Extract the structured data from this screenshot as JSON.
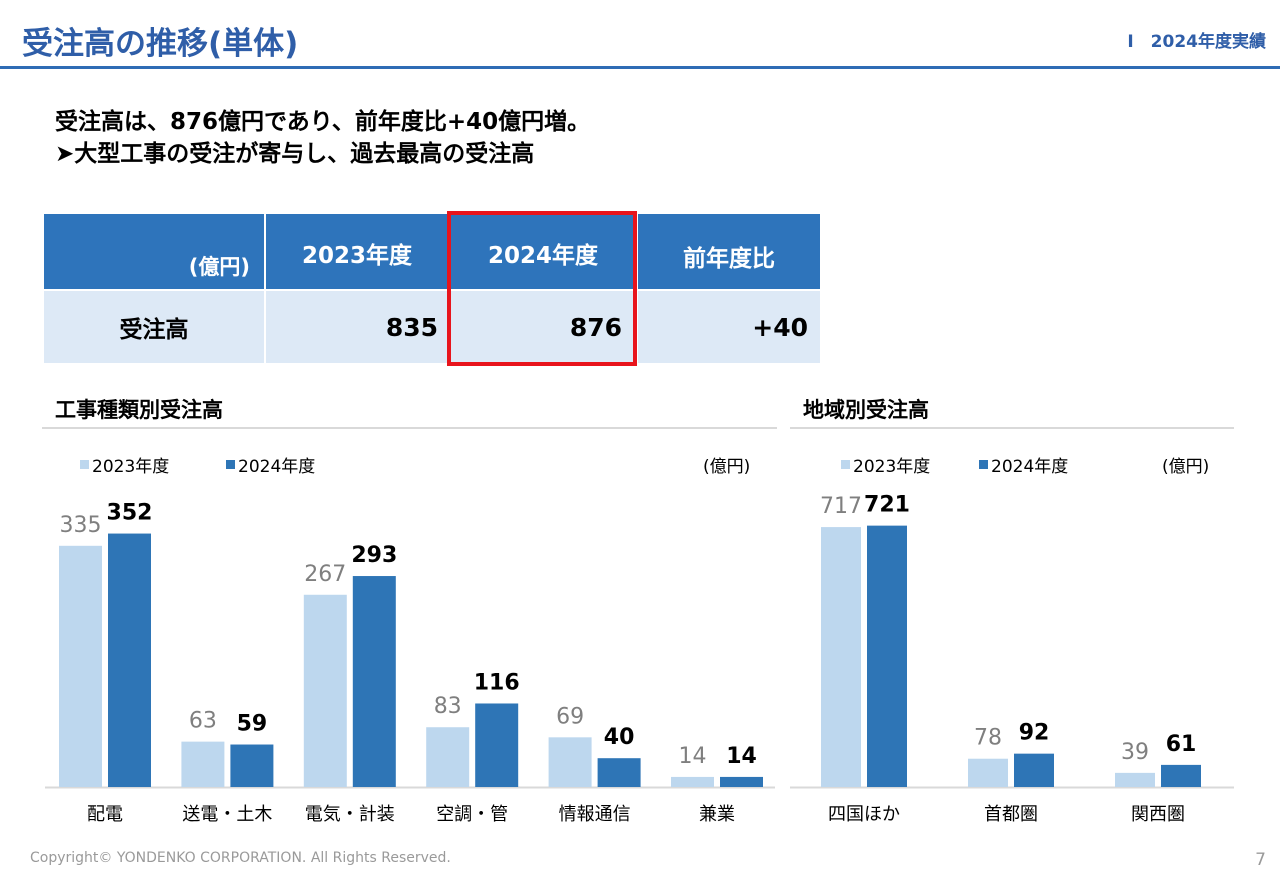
{
  "header": {
    "title": "受注高の推移(単体)",
    "section": "Ⅰ　2024年度実績"
  },
  "summary": {
    "line1": "受注高は、876億円であり、前年度比+40億円増。",
    "line2": "➤大型工事の受注が寄与し、過去最高の受注高"
  },
  "table": {
    "unit": "(億円)",
    "col_2023": "2023年度",
    "col_2024": "2024年度",
    "col_diff": "前年度比",
    "row_label": "受注高",
    "val_2023": "835",
    "val_2024": "876",
    "val_diff": "+40"
  },
  "colors": {
    "brand": "#2f5ea8",
    "header_fill": "#2e74bb",
    "row_fill": "#dde9f6",
    "highlight": "#e8141c",
    "series_2023": "#bdd7ee",
    "series_2024": "#2e75b6"
  },
  "chart_data": [
    {
      "type": "bar",
      "title": "工事種類別受注高",
      "unit": "(億円)",
      "categories": [
        "配電",
        "送電・土木",
        "電気・計装",
        "空調・管",
        "情報通信",
        "兼業"
      ],
      "series": [
        {
          "name": "2023年度",
          "values": [
            335,
            63,
            267,
            83,
            69,
            14
          ]
        },
        {
          "name": "2024年度",
          "values": [
            352,
            59,
            293,
            116,
            40,
            14
          ]
        }
      ],
      "ylim": [
        0,
        400
      ],
      "grid": false,
      "legend": "top-left"
    },
    {
      "type": "bar",
      "title": "地域別受注高",
      "unit": "(億円)",
      "categories": [
        "四国ほか",
        "首都圏",
        "関西圏"
      ],
      "series": [
        {
          "name": "2023年度",
          "values": [
            717,
            78,
            39
          ]
        },
        {
          "name": "2024年度",
          "values": [
            721,
            92,
            61
          ]
        }
      ],
      "ylim": [
        0,
        800
      ],
      "grid": false,
      "legend": "top-left"
    }
  ],
  "footer": {
    "copyright": "Copyright© YONDENKO CORPORATION. All Rights Reserved.",
    "page": "7"
  }
}
